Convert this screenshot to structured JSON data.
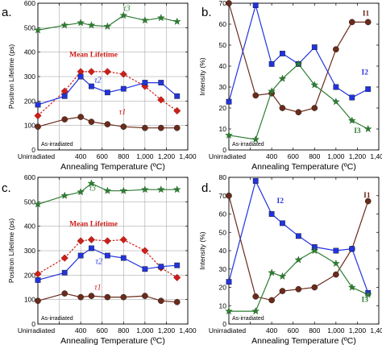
{
  "chart_data": [
    {
      "panel": "a.",
      "type": "line",
      "xlabel": "Annealing Temperature (ºC)",
      "ylabel": "Positron Lifetime (ps)",
      "xlim": [
        0,
        1400
      ],
      "ylim": [
        0,
        600
      ],
      "xticks": [
        0,
        200,
        400,
        600,
        800,
        1000,
        1200,
        1400
      ],
      "xtick_labels": [
        "Unirradiated",
        "",
        "400",
        "600",
        "800",
        "1,000",
        "1,200",
        "1,400"
      ],
      "yticks": [
        0,
        100,
        200,
        300,
        400,
        500,
        600
      ],
      "ytick_labels": [
        "0",
        "100",
        "200",
        "300",
        "400",
        "500",
        "600"
      ],
      "grid": true,
      "note": "As-irradiated",
      "series": [
        {
          "name": "τ3",
          "color": "#2e7d32",
          "marker": "star",
          "dashed": false,
          "x": [
            0,
            250,
            400,
            500,
            650,
            800,
            1000,
            1150,
            1300
          ],
          "y": [
            490,
            510,
            520,
            510,
            505,
            550,
            530,
            540,
            525
          ]
        },
        {
          "name": "Mean Lifetime",
          "color": "#cc1f1a",
          "marker": "diamond",
          "dashed": true,
          "x": [
            0,
            250,
            400,
            500,
            650,
            800,
            1000,
            1150,
            1300
          ],
          "y": [
            140,
            240,
            320,
            320,
            320,
            310,
            260,
            205,
            160
          ]
        },
        {
          "name": "τ2",
          "color": "#2233dd",
          "marker": "square",
          "dashed": false,
          "x": [
            0,
            250,
            400,
            500,
            650,
            800,
            1000,
            1150,
            1300
          ],
          "y": [
            185,
            220,
            300,
            260,
            235,
            250,
            275,
            275,
            220
          ]
        },
        {
          "name": "τ1",
          "color": "#6b2a1a",
          "marker": "circle",
          "dashed": false,
          "x": [
            0,
            250,
            400,
            500,
            650,
            800,
            1000,
            1150,
            1300
          ],
          "y": [
            95,
            125,
            135,
            115,
            105,
            95,
            90,
            90,
            90
          ]
        }
      ],
      "labels": [
        {
          "text": "τ3",
          "x": 830,
          "y": 568,
          "color": "#2e7d32",
          "style": "italic"
        },
        {
          "text": "Mean Lifetime",
          "x": 520,
          "y": 380,
          "color": "#cc1f1a",
          "style": "bold"
        },
        {
          "text": "τ2",
          "x": 560,
          "y": 275,
          "color": "#2233dd",
          "style": "italic"
        },
        {
          "text": "τ1",
          "x": 790,
          "y": 145,
          "color": "#cc1f1a",
          "style": "italic"
        }
      ]
    },
    {
      "panel": "b.",
      "type": "line",
      "xlabel": "Annealing Temperature (ºC)",
      "ylabel": "Intensity (%)",
      "xlim": [
        0,
        1400
      ],
      "ylim": [
        0,
        70
      ],
      "xticks": [
        0,
        200,
        400,
        600,
        800,
        1000,
        1200,
        1400
      ],
      "xtick_labels": [
        "Unirradiated",
        "",
        "400",
        "600",
        "800",
        "1,000",
        "1,200",
        "1,400"
      ],
      "yticks": [
        0,
        10,
        20,
        30,
        40,
        50,
        60,
        70
      ],
      "ytick_labels": [
        "0",
        "10",
        "20",
        "30",
        "40",
        "50",
        "60",
        "70"
      ],
      "grid": false,
      "note": "As-irradiated",
      "series": [
        {
          "name": "I1",
          "color": "#6b2a1a",
          "marker": "circle",
          "dashed": false,
          "x": [
            0,
            250,
            400,
            500,
            650,
            800,
            1000,
            1150,
            1300
          ],
          "y": [
            70,
            26,
            27,
            20,
            18,
            20,
            48,
            61,
            61
          ]
        },
        {
          "name": "I2",
          "color": "#2233dd",
          "marker": "square",
          "dashed": false,
          "x": [
            0,
            250,
            400,
            500,
            650,
            800,
            1000,
            1150,
            1300
          ],
          "y": [
            23,
            69,
            41,
            46,
            41,
            49,
            30,
            25,
            29
          ]
        },
        {
          "name": "I3",
          "color": "#2e7d32",
          "marker": "star",
          "dashed": false,
          "x": [
            0,
            250,
            400,
            500,
            650,
            800,
            1000,
            1150,
            1300
          ],
          "y": [
            7,
            5,
            28,
            34,
            41,
            31,
            23,
            14,
            10
          ]
        }
      ],
      "labels": [
        {
          "text": "I1",
          "x": 1280,
          "y": 64,
          "color": "#6b2a1a",
          "style": "bold"
        },
        {
          "text": "I2",
          "x": 1270,
          "y": 36,
          "color": "#2233dd",
          "style": "bold"
        },
        {
          "text": "I3",
          "x": 1200,
          "y": 8,
          "color": "#2e7d32",
          "style": "bold"
        }
      ]
    },
    {
      "panel": "c.",
      "type": "line",
      "xlabel": "Annealing Temperature (ºC)",
      "ylabel": "Positron Lifetime (ps)",
      "xlim": [
        0,
        1400
      ],
      "ylim": [
        0,
        600
      ],
      "xticks": [
        0,
        200,
        400,
        600,
        800,
        1000,
        1200,
        1400
      ],
      "xtick_labels": [
        "Unirradiated",
        "",
        "400",
        "600",
        "800",
        "1,000",
        "1,200",
        "1,400"
      ],
      "yticks": [
        0,
        100,
        200,
        300,
        400,
        500,
        600
      ],
      "ytick_labels": [
        "0",
        "100",
        "200",
        "300",
        "400",
        "500",
        "600"
      ],
      "grid": true,
      "note": "As-irradiated",
      "series": [
        {
          "name": "τ3",
          "color": "#2e7d32",
          "marker": "star",
          "dashed": false,
          "x": [
            0,
            250,
            400,
            500,
            650,
            800,
            1000,
            1150,
            1300
          ],
          "y": [
            490,
            525,
            540,
            575,
            545,
            545,
            550,
            550,
            550
          ]
        },
        {
          "name": "Mean Lifetime",
          "color": "#cc1f1a",
          "marker": "diamond",
          "dashed": true,
          "x": [
            0,
            250,
            400,
            500,
            650,
            800,
            1000,
            1150,
            1300
          ],
          "y": [
            205,
            270,
            340,
            345,
            340,
            345,
            300,
            230,
            190
          ]
        },
        {
          "name": "τ2",
          "color": "#2233dd",
          "marker": "square",
          "dashed": false,
          "x": [
            0,
            250,
            400,
            500,
            650,
            800,
            1000,
            1150,
            1300
          ],
          "y": [
            180,
            210,
            280,
            310,
            280,
            270,
            225,
            235,
            240
          ]
        },
        {
          "name": "τ1",
          "color": "#6b2a1a",
          "marker": "circle",
          "dashed": false,
          "x": [
            0,
            250,
            400,
            500,
            650,
            800,
            1000,
            1150,
            1300
          ],
          "y": [
            95,
            125,
            110,
            115,
            110,
            110,
            115,
            95,
            90
          ]
        }
      ],
      "labels": [
        {
          "text": "τ3",
          "x": 510,
          "y": 545,
          "color": "#2e7d32",
          "style": "italic"
        },
        {
          "text": "Mean Lifetime",
          "x": 520,
          "y": 400,
          "color": "#cc1f1a",
          "style": "bold"
        },
        {
          "text": "τ2",
          "x": 570,
          "y": 245,
          "color": "#2233dd",
          "style": "italic"
        },
        {
          "text": "τ1",
          "x": 560,
          "y": 140,
          "color": "#cc1f1a",
          "style": "italic"
        }
      ]
    },
    {
      "panel": "d.",
      "type": "line",
      "xlabel": "Annealing Temperature (ºC)",
      "ylabel": "Intensity (%)",
      "xlim": [
        0,
        1400
      ],
      "ylim": [
        0,
        80
      ],
      "xticks": [
        0,
        200,
        400,
        600,
        800,
        1000,
        1200,
        1400
      ],
      "xtick_labels": [
        "Unirradiated",
        "",
        "400",
        "600",
        "800",
        "1,000",
        "1,200",
        "1,400"
      ],
      "yticks": [
        0,
        10,
        20,
        30,
        40,
        50,
        60,
        70,
        80
      ],
      "ytick_labels": [
        "0",
        "10",
        "20",
        "30",
        "40",
        "50",
        "60",
        "70",
        "80"
      ],
      "grid": false,
      "note": "As-irradiated",
      "series": [
        {
          "name": "I1",
          "color": "#6b2a1a",
          "marker": "circle",
          "dashed": false,
          "x": [
            0,
            250,
            400,
            500,
            650,
            800,
            1000,
            1150,
            1300
          ],
          "y": [
            70,
            15,
            13,
            18,
            19,
            20,
            27,
            41,
            67
          ]
        },
        {
          "name": "I2",
          "color": "#2233dd",
          "marker": "square",
          "dashed": false,
          "x": [
            0,
            250,
            400,
            500,
            650,
            800,
            1000,
            1150,
            1300
          ],
          "y": [
            23,
            78,
            60,
            55,
            48,
            42,
            40,
            41,
            17
          ]
        },
        {
          "name": "I3",
          "color": "#2e7d32",
          "marker": "star",
          "dashed": false,
          "x": [
            0,
            250,
            400,
            500,
            650,
            800,
            1000,
            1150,
            1300
          ],
          "y": [
            7,
            7,
            28,
            26,
            35,
            40,
            33,
            20,
            16
          ]
        }
      ],
      "labels": [
        {
          "text": "I1",
          "x": 1290,
          "y": 69,
          "color": "#6b2a1a",
          "style": "bold"
        },
        {
          "text": "I2",
          "x": 480,
          "y": 66,
          "color": "#2233dd",
          "style": "bold"
        },
        {
          "text": "I3",
          "x": 1270,
          "y": 12,
          "color": "#2e7d32",
          "style": "bold"
        }
      ]
    }
  ]
}
